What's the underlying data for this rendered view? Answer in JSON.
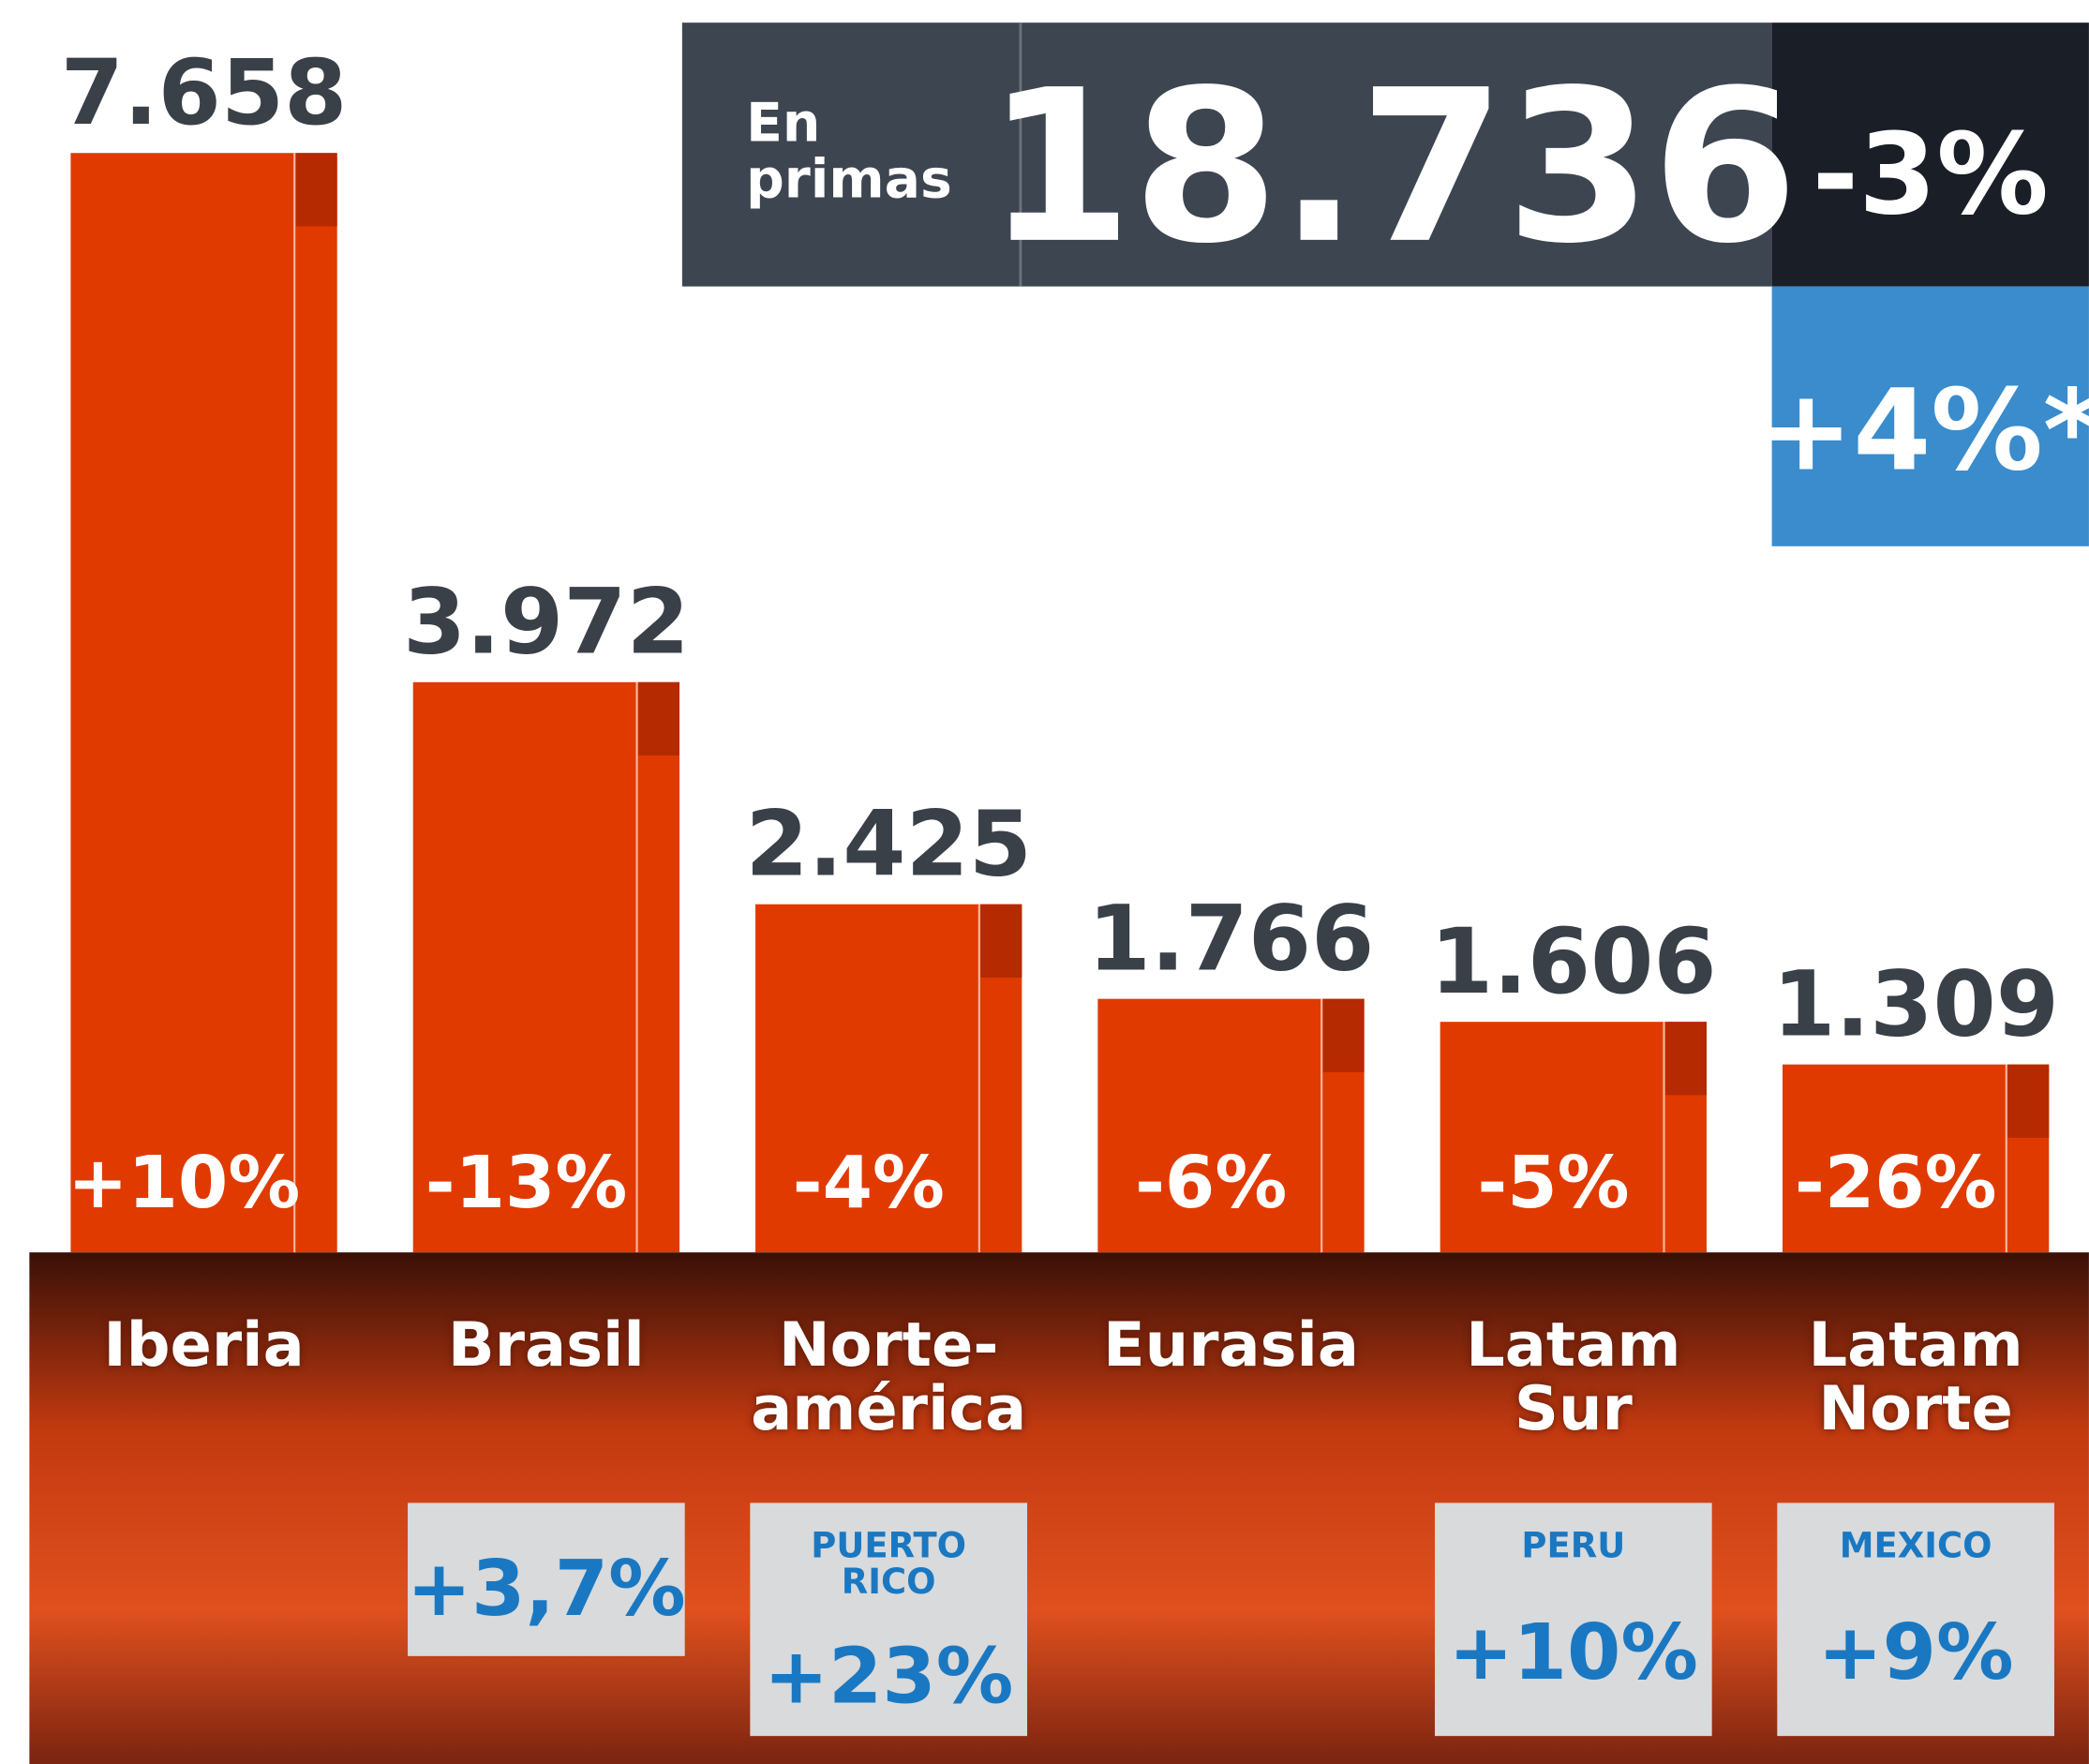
{
  "chart_data": {
    "type": "bar",
    "categories": [
      "Iberia",
      "Brasil",
      "Norte-\namérica",
      "Eurasia",
      "Latam\nSur",
      "Latam\nNorte"
    ],
    "values": [
      7658,
      3972,
      2425,
      1766,
      1606,
      1309
    ],
    "value_labels": [
      "7.658",
      "3.972",
      "2.425",
      "1.766",
      "1.606",
      "1.309"
    ],
    "change_labels": [
      "+10%",
      "-13%",
      "-4%",
      "-6%",
      "-5%",
      "-26%"
    ],
    "color": "#e03a00",
    "ylim": [
      0,
      8000
    ],
    "highlights": [
      null,
      {
        "value_label": "+3,7%"
      },
      {
        "country": "PUERTO\nRICO",
        "value_label": "+23%"
      },
      null,
      {
        "country": "PERÚ",
        "value_label": "+10%"
      },
      {
        "country": "MÉXICO",
        "value_label": "+9%"
      }
    ],
    "total": {
      "label": "En\nprimas",
      "value": 18736,
      "value_label": "18.736",
      "change_label": "-3%",
      "adjusted_change_label": "+4%*"
    }
  }
}
